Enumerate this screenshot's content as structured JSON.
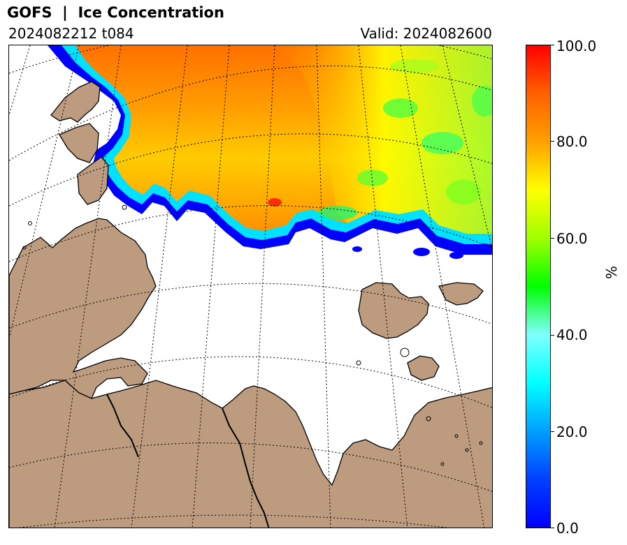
{
  "header": {
    "title": "GOFS  |  Ice Concentration",
    "run": "2024082212 t084",
    "valid": "Valid: 2024082600"
  },
  "colorbar": {
    "unit": "%",
    "range": [
      0,
      100
    ],
    "tick_labels": [
      "100.0",
      "80.0",
      "60.0",
      "40.0",
      "20.0",
      "0.0"
    ],
    "colors": [
      "#0000ff",
      "#0040ff",
      "#00a0ff",
      "#00ffff",
      "#80ffff",
      "#00ff00",
      "#a0ff00",
      "#ffff00",
      "#ffa000",
      "#ff6000",
      "#ff0000"
    ]
  },
  "map": {
    "land_color": "#bc9b7e",
    "ocean_color": "#ffffff",
    "coastline_color": "#000000",
    "gridlines": "dotted",
    "region": "Barents and Kara Seas"
  }
}
